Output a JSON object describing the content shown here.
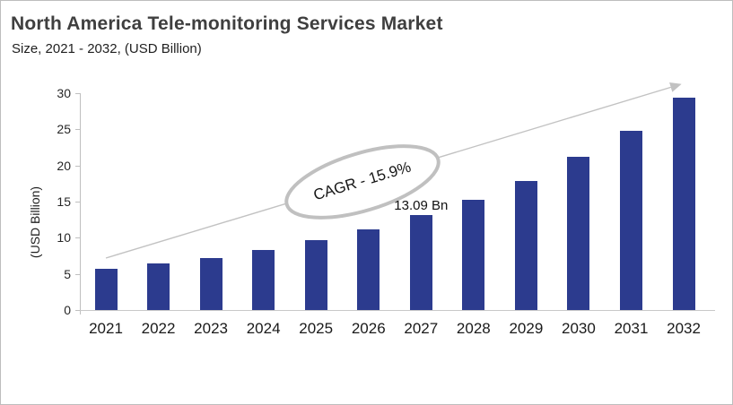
{
  "header": {
    "title": "North America Tele-monitoring Services Market",
    "subtitle": "Size, 2021 - 2032, (USD Billion)"
  },
  "chart_data": {
    "type": "bar",
    "title": "North America Tele-monitoring Services Market",
    "subtitle": "Size, 2021 - 2032, (USD Billion)",
    "categories": [
      "2021",
      "2022",
      "2023",
      "2024",
      "2025",
      "2026",
      "2027",
      "2028",
      "2029",
      "2030",
      "2031",
      "2032"
    ],
    "values": [
      5.7,
      6.4,
      7.2,
      8.3,
      9.7,
      11.2,
      13.09,
      15.2,
      17.9,
      21.2,
      24.8,
      29.4
    ],
    "xlabel": "",
    "ylabel": "(USD Billion)",
    "ylim": [
      0,
      30
    ],
    "yticks": [
      0,
      5,
      10,
      15,
      20,
      25,
      30
    ],
    "grid": false,
    "legend": false,
    "annotations": {
      "cagr_label": "CAGR - 15.9%",
      "data_label": {
        "category": "2027",
        "text": "13.09 Bn"
      }
    }
  },
  "colors": {
    "bar": "#2C3B8E",
    "axis": "#BFBFBF",
    "arrow": "#C2C2C2",
    "ellipse_stroke": "#C0C0C0",
    "title_text": "#3F3F3F",
    "body_text": "#1F1F1F",
    "border": "#BDBDBD"
  }
}
